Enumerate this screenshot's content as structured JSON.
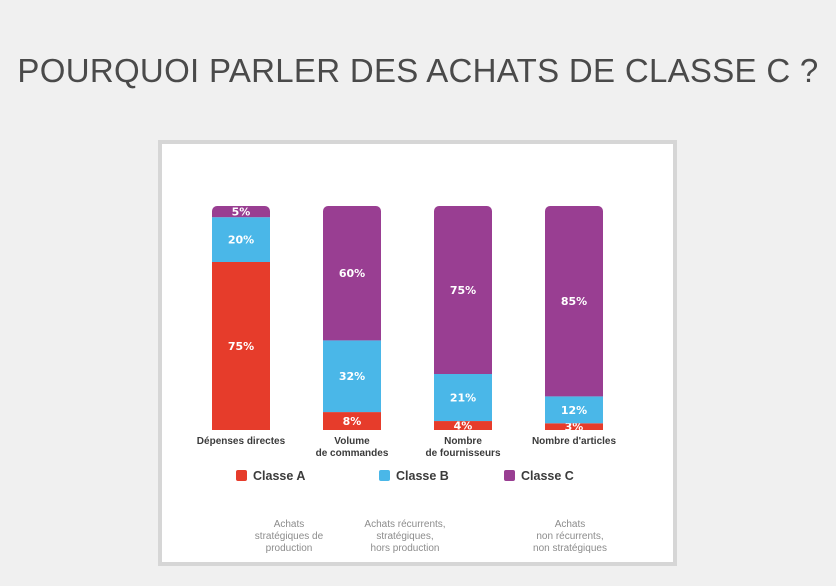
{
  "title": "POURQUOI PARLER DES ACHATS DE CLASSE C ?",
  "chart_data": {
    "type": "bar",
    "stacked": true,
    "categories": [
      [
        "Dépenses directes"
      ],
      [
        "Volume",
        "de commandes"
      ],
      [
        "Nombre",
        "de fournisseurs"
      ],
      [
        "Nombre d'articles"
      ]
    ],
    "series": [
      {
        "name": "Classe A",
        "color": "#e63c2b",
        "values": [
          75,
          8,
          4,
          3
        ]
      },
      {
        "name": "Classe B",
        "color": "#4ab7e8",
        "values": [
          20,
          32,
          21,
          12
        ]
      },
      {
        "name": "Classe C",
        "color": "#993e92",
        "values": [
          5,
          60,
          75,
          85
        ]
      }
    ],
    "value_labels": [
      [
        "75%",
        "8%",
        "4%",
        "3%"
      ],
      [
        "20%",
        "32%",
        "21%",
        "12%"
      ],
      [
        "5%",
        "60%",
        "75%",
        "85%"
      ]
    ],
    "ylim": [
      0,
      100
    ],
    "legend_position": "bottom",
    "grid": false,
    "notes": [
      [
        "Achats",
        "stratégiques de",
        "production"
      ],
      [
        "Achats récurrents,",
        "stratégiques,",
        "hors production"
      ],
      [
        "Achats",
        "non récurrents,",
        "non stratégiques"
      ]
    ]
  }
}
